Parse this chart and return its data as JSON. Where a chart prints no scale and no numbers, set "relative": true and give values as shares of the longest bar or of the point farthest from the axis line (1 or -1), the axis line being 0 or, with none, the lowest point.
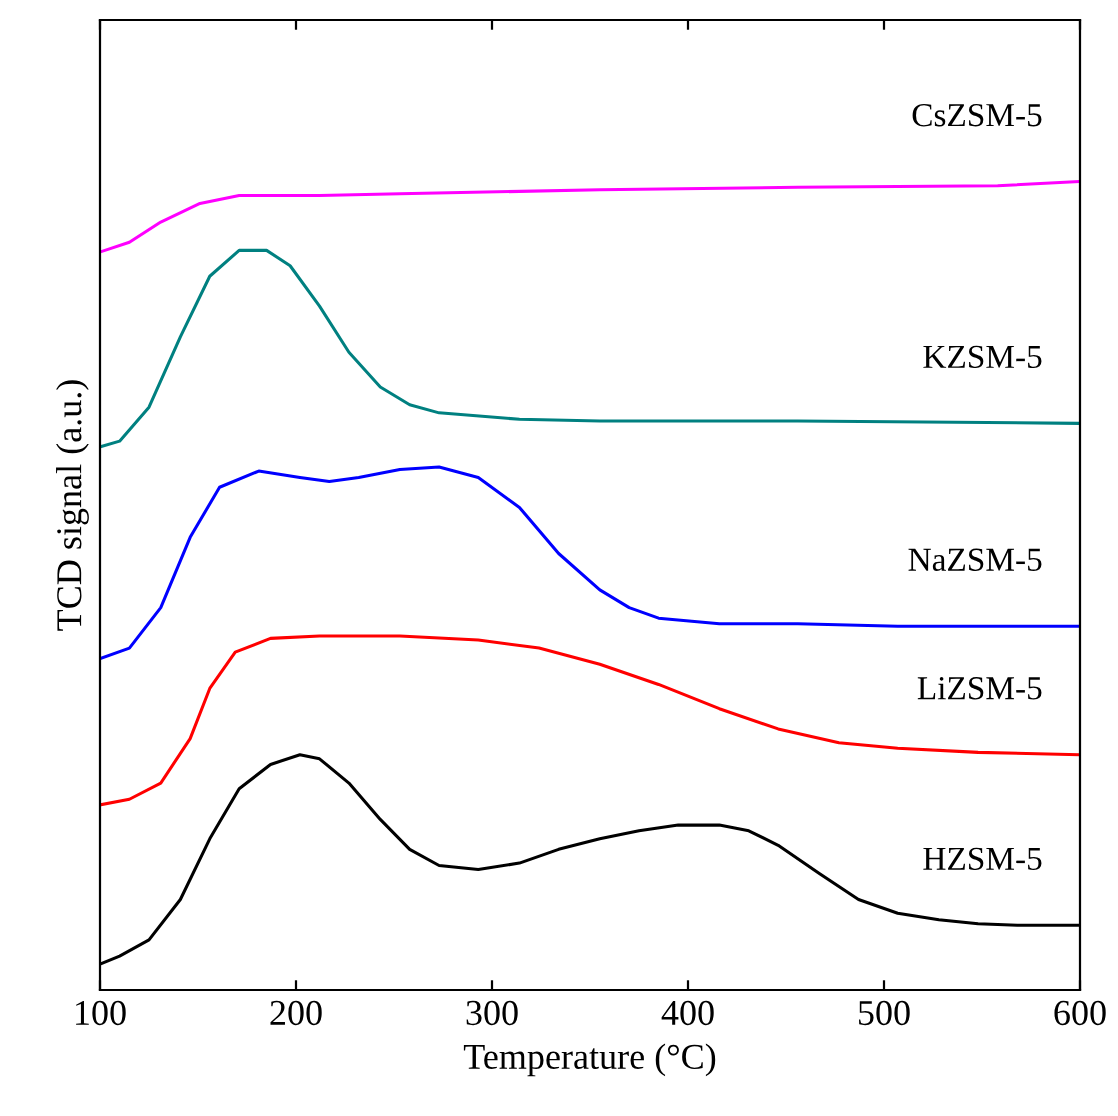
{
  "chart_data": {
    "type": "line",
    "relative": true,
    "xlabel": "Temperature (°C)",
    "ylabel": "TCD signal (a.u.)",
    "xlim": [
      100,
      600
    ],
    "xticks": [
      100,
      200,
      300,
      400,
      500,
      600
    ],
    "grid": false,
    "legend": false,
    "marker": "none",
    "line_style": "solid",
    "series": [
      {
        "name": "CsZSM-5",
        "color": "#ff00ff",
        "x": [
          100,
          115,
          131,
          151,
          171,
          212,
          253,
          355,
          456,
          558,
          599
        ],
        "values": [
          0.913,
          0.925,
          0.95,
          0.973,
          0.983,
          0.983,
          0.985,
          0.99,
          0.993,
          0.995,
          1.0
        ]
      },
      {
        "name": "KZSM-5",
        "color": "#008080",
        "x": [
          100,
          110,
          125,
          141,
          156,
          171,
          185,
          197,
          212,
          227,
          243,
          258,
          273,
          314,
          355,
          456,
          599
        ],
        "values": [
          0.672,
          0.679,
          0.721,
          0.808,
          0.883,
          0.915,
          0.915,
          0.896,
          0.846,
          0.789,
          0.746,
          0.724,
          0.714,
          0.706,
          0.704,
          0.704,
          0.701
        ]
      },
      {
        "name": "NaZSM-5",
        "color": "#0000ff",
        "x": [
          100,
          115,
          131,
          146,
          161,
          181,
          202,
          217,
          232,
          253,
          273,
          293,
          314,
          334,
          355,
          370,
          385,
          416,
          456,
          507,
          599
        ],
        "values": [
          0.41,
          0.423,
          0.473,
          0.56,
          0.622,
          0.642,
          0.634,
          0.629,
          0.634,
          0.644,
          0.647,
          0.634,
          0.597,
          0.54,
          0.495,
          0.473,
          0.46,
          0.453,
          0.453,
          0.45,
          0.45
        ]
      },
      {
        "name": "LiZSM-5",
        "color": "#ff0000",
        "x": [
          100,
          115,
          131,
          146,
          156,
          169,
          187,
          212,
          253,
          293,
          324,
          355,
          385,
          416,
          446,
          477,
          507,
          548,
          599
        ],
        "values": [
          0.229,
          0.236,
          0.256,
          0.311,
          0.373,
          0.418,
          0.435,
          0.438,
          0.438,
          0.433,
          0.423,
          0.403,
          0.378,
          0.348,
          0.323,
          0.306,
          0.299,
          0.294,
          0.291
        ]
      },
      {
        "name": "HZSM-5",
        "color": "#000000",
        "x": [
          100,
          110,
          125,
          141,
          156,
          171,
          187,
          202,
          212,
          227,
          243,
          258,
          273,
          293,
          314,
          334,
          355,
          375,
          395,
          416,
          431,
          446,
          467,
          487,
          507,
          528,
          548,
          568,
          599
        ],
        "values": [
          0.032,
          0.042,
          0.062,
          0.112,
          0.187,
          0.249,
          0.279,
          0.291,
          0.286,
          0.256,
          0.211,
          0.174,
          0.154,
          0.149,
          0.157,
          0.174,
          0.187,
          0.197,
          0.204,
          0.204,
          0.197,
          0.179,
          0.144,
          0.112,
          0.095,
          0.087,
          0.082,
          0.08,
          0.08
        ]
      }
    ]
  }
}
